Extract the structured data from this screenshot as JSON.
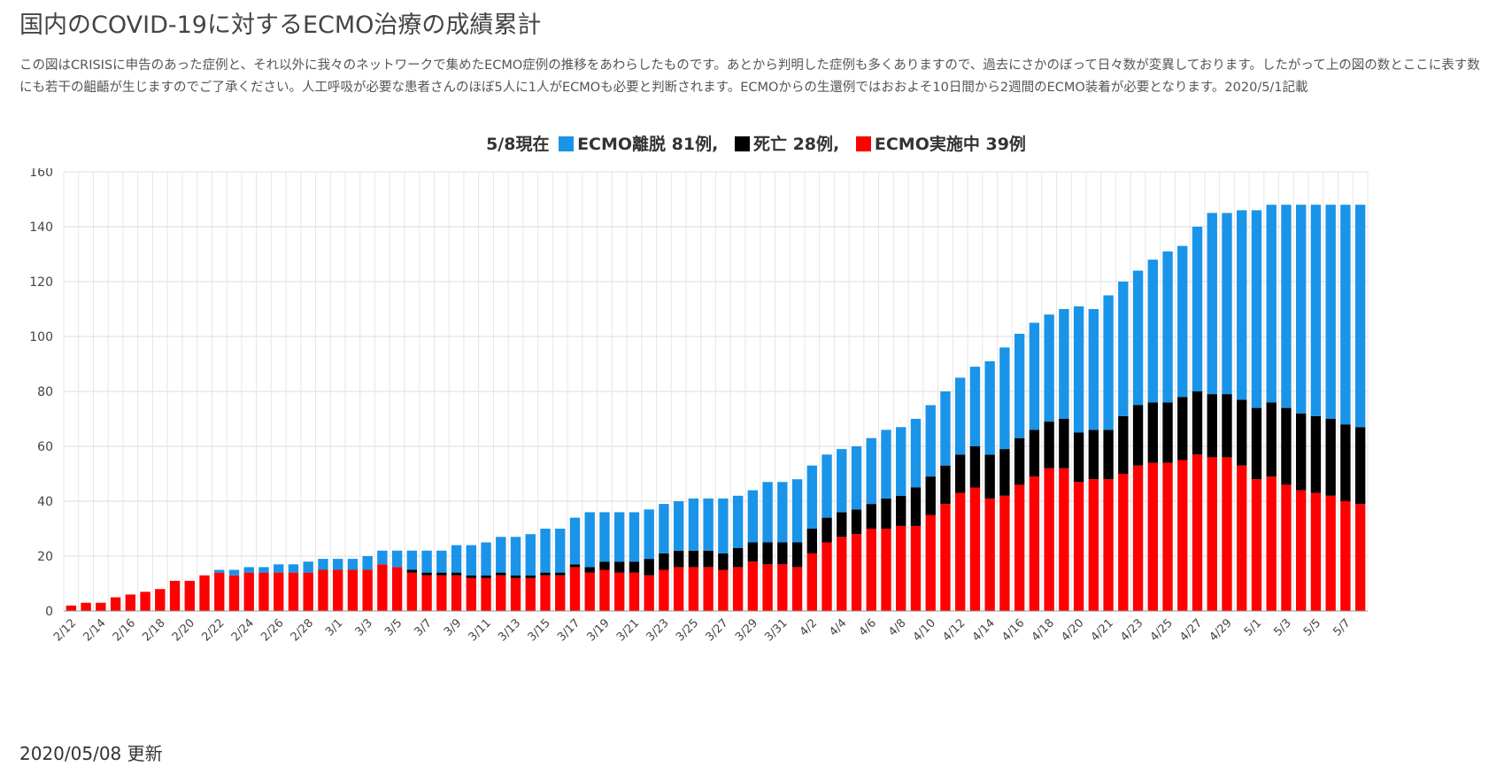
{
  "header": {
    "title": "国内のCOVID-19に対するECMO治療の成績累計",
    "description": "この図はCRISISに申告のあった症例と、それ以外に我々のネットワークで集めたECMO症例の推移をあわらしたものです。あとから判明した症例も多くありますので、過去にさかのぼって日々数が変異しております。したがって上の図の数とここに表す数にも若干の齟齬が生じますのでご了承ください。人工呼吸が必要な患者さんのほぼ5人に1人がECMOも必要と判断されます。ECMOからの生還例ではおおよそ10日間から2週間のECMO装着が必要となります。2020/5/1記載"
  },
  "summary": {
    "date_label": "5/8現在",
    "item1_label": "ECMO離脱 81例",
    "item2_label": "死亡 28例",
    "item3_label": "ECMO実施中 39例",
    "separator": ","
  },
  "footer": {
    "updated_text": "2020/05/08 更新"
  },
  "colors": {
    "weaned": "#1a94e8",
    "died": "#000000",
    "ongoing": "#ff0000",
    "grid": "#dddddd",
    "axis_text": "#444444"
  },
  "chart_data": {
    "type": "bar",
    "stacked": true,
    "ylim": [
      0,
      160
    ],
    "yticks": [
      0,
      20,
      40,
      60,
      80,
      100,
      120,
      140,
      160
    ],
    "grid": true,
    "categories": [
      "2/12",
      "2/13",
      "2/14",
      "2/15",
      "2/16",
      "2/17",
      "2/18",
      "2/19",
      "2/20",
      "2/21",
      "2/22",
      "2/23",
      "2/24",
      "2/25",
      "2/26",
      "2/27",
      "2/28",
      "2/29",
      "3/1",
      "3/2",
      "3/3",
      "3/4",
      "3/5",
      "3/6",
      "3/7",
      "3/8",
      "3/9",
      "3/10",
      "3/11",
      "3/12",
      "3/13",
      "3/14",
      "3/15",
      "3/16",
      "3/17",
      "3/18",
      "3/19",
      "3/20",
      "3/21",
      "3/22",
      "3/23",
      "3/24",
      "3/25",
      "3/26",
      "3/27",
      "3/28",
      "3/29",
      "3/30",
      "3/31",
      "4/1",
      "4/2",
      "4/3",
      "4/4",
      "4/5",
      "4/6",
      "4/7",
      "4/8",
      "4/9",
      "4/10",
      "4/11",
      "4/12",
      "4/13",
      "4/14",
      "4/15",
      "4/16",
      "4/17",
      "4/18",
      "4/19",
      "4/20",
      "4/20b",
      "4/21",
      "4/22",
      "4/23",
      "4/24",
      "4/25",
      "4/26",
      "4/27",
      "4/28",
      "4/29",
      "4/30",
      "5/1",
      "5/2",
      "5/3",
      "5/4",
      "5/5",
      "5/6",
      "5/7",
      "5/8"
    ],
    "xtick_labels": [
      "2/12",
      "",
      "2/14",
      "",
      "2/16",
      "",
      "2/18",
      "",
      "2/20",
      "",
      "2/22",
      "",
      "2/24",
      "",
      "2/26",
      "",
      "2/28",
      "",
      "3/1",
      "",
      "3/3",
      "",
      "3/5",
      "",
      "3/7",
      "",
      "3/9",
      "",
      "3/11",
      "",
      "3/13",
      "",
      "3/15",
      "",
      "3/17",
      "",
      "3/19",
      "",
      "3/21",
      "",
      "3/23",
      "",
      "3/25",
      "",
      "3/27",
      "",
      "3/29",
      "",
      "3/31",
      "",
      "4/2",
      "",
      "4/4",
      "",
      "4/6",
      "",
      "4/8",
      "",
      "4/10",
      "",
      "4/12",
      "",
      "4/14",
      "",
      "4/16",
      "",
      "4/18",
      "",
      "4/20",
      "",
      "4/21",
      "",
      "4/23",
      "",
      "4/25",
      "",
      "4/27",
      "",
      "4/29",
      "",
      "5/1",
      "",
      "5/3",
      "",
      "5/5",
      "",
      "5/7",
      ""
    ],
    "series": [
      {
        "name": "ECMO実施中",
        "color": "#ff0000",
        "values": [
          2,
          3,
          3,
          5,
          6,
          7,
          8,
          11,
          11,
          13,
          14,
          13,
          14,
          14,
          14,
          14,
          14,
          15,
          15,
          15,
          15,
          17,
          16,
          14,
          13,
          13,
          13,
          12,
          12,
          13,
          12,
          12,
          13,
          13,
          16,
          14,
          15,
          14,
          14,
          13,
          15,
          16,
          16,
          16,
          15,
          16,
          18,
          17,
          17,
          16,
          21,
          25,
          27,
          28,
          30,
          30,
          31,
          31,
          35,
          39,
          43,
          45,
          41,
          42,
          46,
          49,
          52,
          52,
          47,
          48,
          48,
          50,
          53,
          54,
          54,
          55,
          57,
          56,
          56,
          53,
          48,
          49,
          46,
          44,
          43,
          42,
          40,
          39
        ]
      },
      {
        "name": "死亡",
        "color": "#000000",
        "values": [
          0,
          0,
          0,
          0,
          0,
          0,
          0,
          0,
          0,
          0,
          0,
          0,
          0,
          0,
          0,
          0,
          0,
          0,
          0,
          0,
          0,
          0,
          0,
          1,
          1,
          1,
          1,
          1,
          1,
          1,
          1,
          1,
          1,
          1,
          1,
          2,
          3,
          4,
          4,
          6,
          6,
          6,
          6,
          6,
          6,
          7,
          7,
          8,
          8,
          9,
          9,
          9,
          9,
          9,
          9,
          11,
          11,
          14,
          14,
          14,
          14,
          15,
          16,
          17,
          17,
          17,
          17,
          18,
          18,
          18,
          18,
          21,
          22,
          22,
          22,
          23,
          23,
          23,
          23,
          24,
          26,
          27,
          28,
          28,
          28,
          28,
          28,
          28
        ]
      },
      {
        "name": "ECMO離脱",
        "color": "#1a94e8",
        "values": [
          0,
          0,
          0,
          0,
          0,
          0,
          0,
          0,
          0,
          0,
          1,
          2,
          2,
          2,
          3,
          3,
          4,
          4,
          4,
          4,
          5,
          5,
          6,
          7,
          8,
          8,
          10,
          11,
          12,
          13,
          14,
          15,
          16,
          16,
          17,
          20,
          18,
          18,
          18,
          18,
          18,
          18,
          19,
          19,
          20,
          19,
          19,
          22,
          22,
          23,
          23,
          23,
          23,
          23,
          24,
          25,
          25,
          25,
          26,
          27,
          28,
          29,
          34,
          37,
          38,
          39,
          39,
          40,
          46,
          44,
          49,
          49,
          49,
          52,
          55,
          55,
          60,
          66,
          66,
          69,
          72,
          72,
          74,
          76,
          77,
          78,
          80,
          81
        ]
      }
    ]
  }
}
